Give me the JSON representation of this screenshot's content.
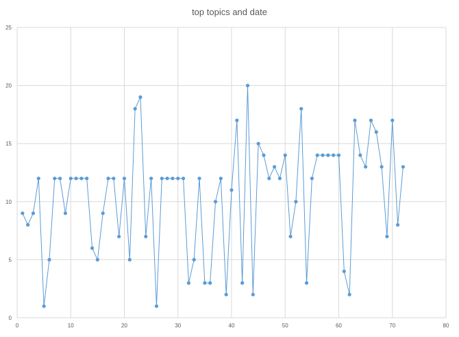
{
  "chart_data": {
    "type": "scatter",
    "title": "top topics and date",
    "xlabel": "",
    "ylabel": "",
    "xlim": [
      0,
      80
    ],
    "ylim": [
      0,
      25
    ],
    "xticks": [
      0,
      10,
      20,
      30,
      40,
      50,
      60,
      70,
      80
    ],
    "yticks": [
      0,
      5,
      10,
      15,
      20,
      25
    ],
    "grid": true,
    "legend": "none",
    "series_color": "#5B9BD5",
    "series": [
      {
        "x": [
          1,
          2,
          3,
          4,
          5,
          6,
          7,
          8,
          9,
          10,
          11,
          12,
          13,
          14,
          15,
          16,
          17,
          18,
          19,
          20,
          21,
          22,
          23,
          24,
          25,
          26,
          27,
          28,
          29,
          30,
          31,
          32,
          33,
          34,
          35,
          36,
          37,
          38,
          39,
          40,
          41,
          42,
          43,
          44,
          45,
          46,
          47,
          48,
          49,
          50,
          51,
          52,
          53,
          54,
          55,
          56,
          57,
          58,
          59,
          60,
          61,
          62,
          63,
          64,
          65,
          66,
          67,
          68,
          69,
          70,
          71,
          72
        ],
        "y": [
          9,
          8,
          9,
          12,
          1,
          5,
          12,
          12,
          9,
          12,
          12,
          12,
          12,
          6,
          5,
          9,
          12,
          12,
          7,
          12,
          5,
          18,
          19,
          7,
          12,
          1,
          12,
          12,
          12,
          12,
          12,
          3,
          5,
          12,
          3,
          3,
          10,
          12,
          2,
          11,
          17,
          3,
          20,
          2,
          15,
          14,
          12,
          13,
          12,
          14,
          7,
          10,
          18,
          3,
          12,
          14,
          14,
          14,
          14,
          14,
          4,
          2,
          17,
          14,
          13,
          17,
          16,
          13,
          7,
          17,
          8,
          13
        ]
      }
    ]
  }
}
